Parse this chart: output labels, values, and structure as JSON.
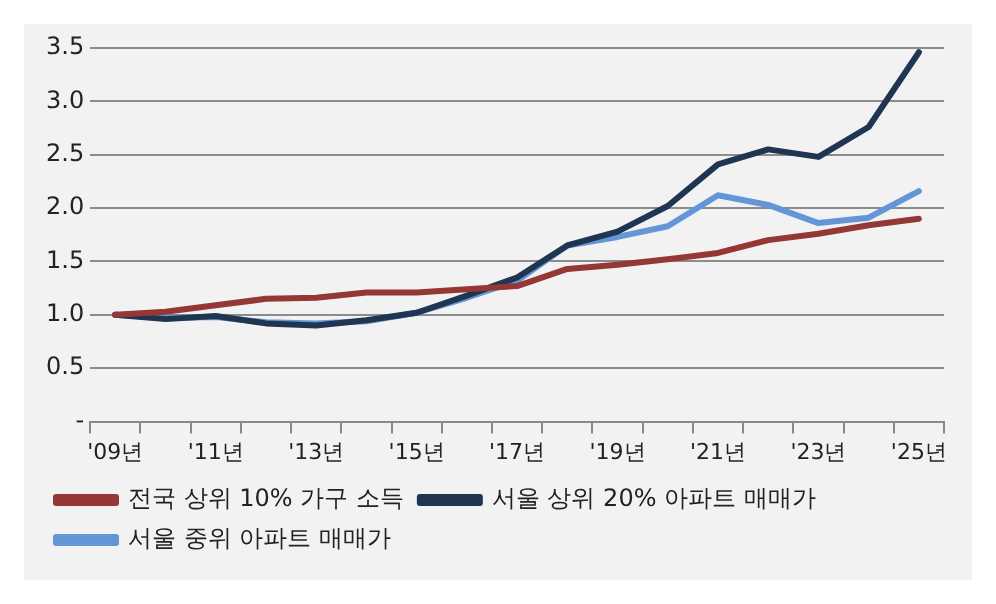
{
  "chart_data": {
    "type": "line",
    "categories": [
      "'09년",
      null,
      "'11년",
      null,
      "'13년",
      null,
      "'15년",
      null,
      "'17년",
      null,
      "'19년",
      null,
      "'21년",
      null,
      "'23년",
      null,
      "'25년"
    ],
    "series": [
      {
        "name": "전국 상위 10% 가구 소득",
        "color": "#953735",
        "values": [
          1.0,
          1.03,
          1.09,
          1.15,
          1.16,
          1.21,
          1.21,
          1.24,
          1.27,
          1.43,
          1.47,
          1.52,
          1.58,
          1.7,
          1.76,
          1.84,
          1.9
        ]
      },
      {
        "name": "서울 상위 20% 아파트 매매가",
        "color": "#1f3552",
        "values": [
          1.0,
          0.96,
          0.99,
          0.92,
          0.9,
          0.95,
          1.02,
          1.18,
          1.35,
          1.65,
          1.78,
          2.02,
          2.41,
          2.55,
          2.48,
          2.76,
          3.46
        ]
      },
      {
        "name": "서울 중위 아파트 매매가",
        "color": "#6495d6",
        "values": [
          1.0,
          0.97,
          0.98,
          0.93,
          0.92,
          0.94,
          1.02,
          1.16,
          1.32,
          1.65,
          1.73,
          1.83,
          2.12,
          2.03,
          1.86,
          1.91,
          2.16
        ]
      }
    ],
    "ylim": [
      0,
      3.5
    ],
    "yticks": [
      {
        "value": 0,
        "label": "-"
      },
      0.5,
      {
        "value": 1,
        "label": "1.0"
      },
      1.5,
      {
        "value": 2,
        "label": "2.0"
      },
      2.5,
      {
        "value": 3,
        "label": "3.0"
      },
      3.5
    ],
    "grid": "y",
    "legend": "bottom",
    "marker": "none",
    "line_style": "solid"
  }
}
